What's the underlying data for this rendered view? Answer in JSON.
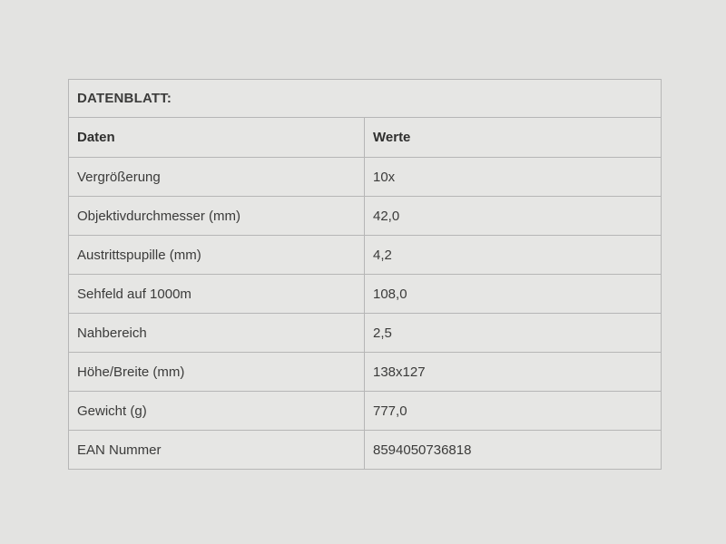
{
  "page": {
    "background_color": "#e3e3e1",
    "cell_background_color": "#e6e6e4",
    "border_color": "#b6b6b6",
    "text_color": "#3b3b3a"
  },
  "datasheet": {
    "title": "DATENBLATT:",
    "columns": {
      "daten": "Daten",
      "werte": "Werte"
    },
    "rows": [
      {
        "label": "Vergrößerung",
        "value": "10x"
      },
      {
        "label": "Objektivdurchmesser (mm)",
        "value": "42,0"
      },
      {
        "label": "Austrittspupille (mm)",
        "value": "4,2"
      },
      {
        "label": "Sehfeld auf 1000m",
        "value": "108,0"
      },
      {
        "label": "Nahbereich",
        "value": "2,5"
      },
      {
        "label": "Höhe/Breite (mm)",
        "value": "138x127"
      },
      {
        "label": "Gewicht (g)",
        "value": "777,0"
      },
      {
        "label": "EAN Nummer",
        "value": "8594050736818"
      }
    ]
  }
}
